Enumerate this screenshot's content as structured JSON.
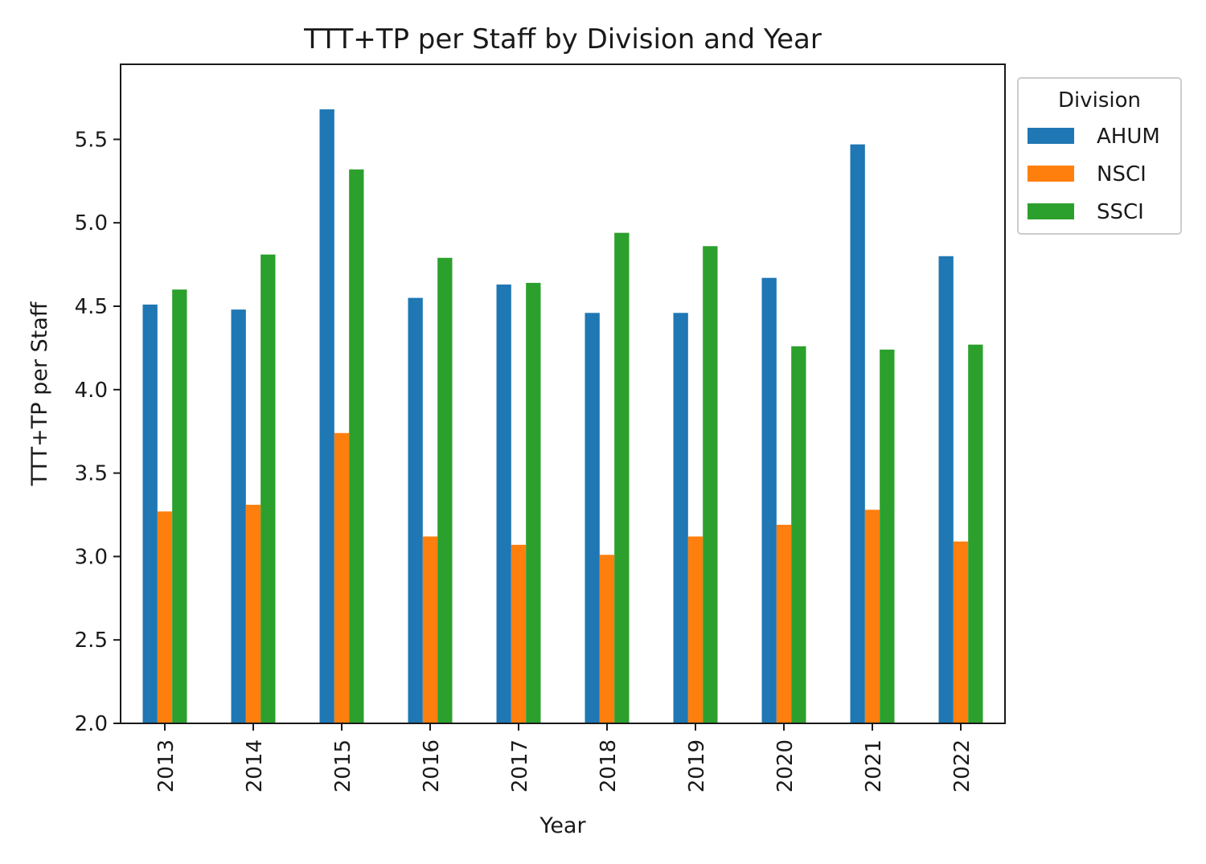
{
  "chart_data": {
    "type": "bar",
    "title": "TTT+TP per Staff by Division and Year",
    "xlabel": "Year",
    "ylabel": "TTT+TP per Staff",
    "categories": [
      "2013",
      "2014",
      "2015",
      "2016",
      "2017",
      "2018",
      "2019",
      "2020",
      "2021",
      "2022"
    ],
    "series": [
      {
        "name": "AHUM",
        "color": "#1f77b4",
        "values": [
          4.51,
          4.48,
          5.68,
          4.55,
          4.63,
          4.46,
          4.46,
          4.67,
          5.47,
          4.8
        ]
      },
      {
        "name": "NSCI",
        "color": "#ff7f0e",
        "values": [
          3.27,
          3.31,
          3.74,
          3.12,
          3.07,
          3.01,
          3.12,
          3.19,
          3.28,
          3.09
        ]
      },
      {
        "name": "SSCI",
        "color": "#2ca02c",
        "values": [
          4.6,
          4.81,
          5.32,
          4.79,
          4.64,
          4.94,
          4.86,
          4.26,
          4.24,
          4.27
        ]
      }
    ],
    "ylim": [
      2.0,
      5.95
    ],
    "yticks": [
      "2.0",
      "2.5",
      "3.0",
      "3.5",
      "4.0",
      "4.5",
      "5.0",
      "5.5"
    ],
    "grid": false,
    "legend": {
      "title": "Division",
      "placement": "outside-top-right"
    }
  }
}
